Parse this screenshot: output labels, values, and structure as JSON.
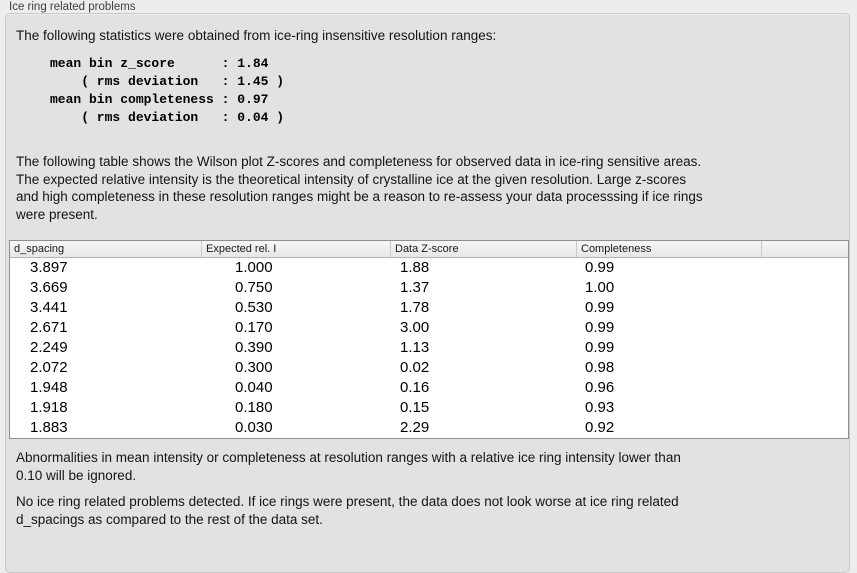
{
  "group_title": "Ice ring related problems",
  "intro": "The following statistics were obtained from ice-ring insensitive resolution ranges:",
  "stats_block": "mean bin z_score      : 1.84\n    ( rms deviation   : 1.45 )\nmean bin completeness : 0.97\n    ( rms deviation   : 0.04 )",
  "table_description": "The following table shows the Wilson plot Z-scores and completeness for observed data in ice-ring sensitive areas.\nThe expected relative intensity is the theoretical intensity of crystalline ice at the given resolution. Large z-scores\nand high completeness in these resolution ranges might be a reason to re-assess your data processsing if ice rings\nwere present.",
  "table": {
    "columns": [
      "d_spacing",
      "Expected rel. I",
      "Data Z-score",
      "Completeness"
    ],
    "rows": [
      [
        "3.897",
        "1.000",
        "1.88",
        "0.99"
      ],
      [
        "3.669",
        "0.750",
        "1.37",
        "1.00"
      ],
      [
        "3.441",
        "0.530",
        "1.78",
        "0.99"
      ],
      [
        "2.671",
        "0.170",
        "3.00",
        "0.99"
      ],
      [
        "2.249",
        "0.390",
        "1.13",
        "0.99"
      ],
      [
        "2.072",
        "0.300",
        "0.02",
        "0.98"
      ],
      [
        "1.948",
        "0.040",
        "0.16",
        "0.96"
      ],
      [
        "1.918",
        "0.180",
        "0.15",
        "0.93"
      ],
      [
        "1.883",
        "0.030",
        "2.29",
        "0.92"
      ]
    ]
  },
  "ignore_note": "Abnormalities in mean intensity or completeness at resolution ranges with a relative ice ring intensity lower than\n0.10 will be ignored.",
  "conclusion": "No ice ring related problems detected. If ice rings were present, the data does not look worse at ice ring related\nd_spacings as compared to the rest of the data set.",
  "colors": {
    "page_background": "#ededed",
    "panel_background": "#e2e2e2",
    "panel_border": "#c9c9c9",
    "table_background": "#ffffff",
    "table_border": "#8f8f8f",
    "table_header_background": "#ededed",
    "text": "#141414"
  }
}
